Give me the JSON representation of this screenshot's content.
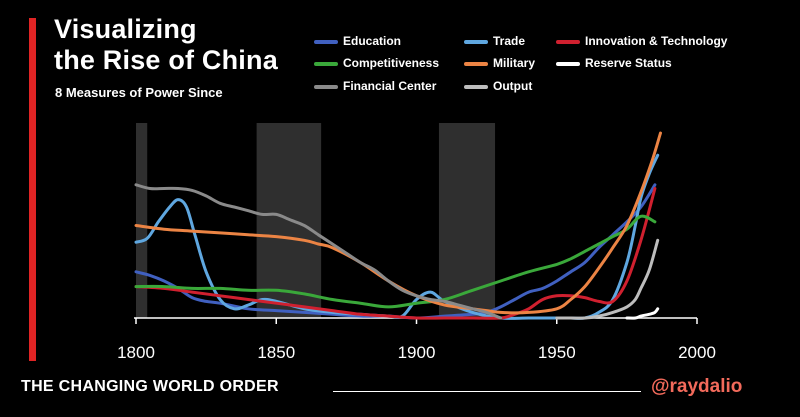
{
  "header": {
    "title_line1": "Visualizing",
    "title_line2": "the Rise of China",
    "subtitle": "8 Measures of Power Since"
  },
  "footer": {
    "left": "THE CHANGING WORLD ORDER",
    "right": "@raydalio"
  },
  "colors": {
    "accent_red": "#e02424",
    "background": "#000000",
    "footer_handle": "#f26a5b",
    "shading": "#2f2f2f"
  },
  "chart_data": {
    "type": "line",
    "title": "Visualizing the Rise of China",
    "subtitle": "8 Measures of Power Since",
    "xlabel": "",
    "ylabel": "",
    "xlim": [
      1800,
      2000
    ],
    "ylim": [
      0,
      1
    ],
    "x_ticks": [
      "1800",
      "1850",
      "1900",
      "1950",
      "2000"
    ],
    "grid": false,
    "legend_position": "top",
    "shaded_periods": [
      [
        1800,
        1804
      ],
      [
        1843,
        1866
      ],
      [
        1908,
        1928
      ]
    ],
    "series": [
      {
        "name": "Education",
        "color": "#4060c0",
        "x": [
          1800,
          1805,
          1810,
          1815,
          1820,
          1825,
          1830,
          1840,
          1850,
          1860,
          1870,
          1880,
          1890,
          1900,
          1910,
          1920,
          1925,
          1930,
          1935,
          1940,
          1945,
          1950,
          1955,
          1960,
          1965,
          1970,
          1975,
          1980,
          1985
        ],
        "y": [
          0.25,
          0.23,
          0.2,
          0.16,
          0.11,
          0.09,
          0.08,
          0.05,
          0.04,
          0.03,
          0.02,
          0.01,
          0.01,
          0.0,
          0.01,
          0.02,
          0.03,
          0.06,
          0.1,
          0.14,
          0.16,
          0.2,
          0.25,
          0.3,
          0.38,
          0.45,
          0.52,
          0.6,
          0.72
        ]
      },
      {
        "name": "Trade",
        "color": "#5fa7e0",
        "x": [
          1800,
          1804,
          1808,
          1812,
          1815,
          1818,
          1821,
          1825,
          1830,
          1835,
          1840,
          1845,
          1850,
          1860,
          1870,
          1880,
          1890,
          1895,
          1900,
          1905,
          1910,
          1920,
          1930,
          1940,
          1950,
          1955,
          1960,
          1965,
          1970,
          1975,
          1978,
          1980,
          1983,
          1986
        ],
        "y": [
          0.41,
          0.43,
          0.52,
          0.6,
          0.64,
          0.6,
          0.45,
          0.25,
          0.1,
          0.05,
          0.07,
          0.1,
          0.09,
          0.05,
          0.03,
          0.02,
          0.01,
          0.01,
          0.1,
          0.14,
          0.09,
          0.03,
          0.0,
          0.0,
          0.0,
          0.0,
          0.0,
          0.03,
          0.1,
          0.3,
          0.5,
          0.65,
          0.78,
          0.88
        ]
      },
      {
        "name": "Innovation & Technology",
        "color": "#d0202f",
        "x": [
          1800,
          1810,
          1820,
          1830,
          1840,
          1850,
          1860,
          1870,
          1880,
          1890,
          1900,
          1910,
          1920,
          1930,
          1935,
          1940,
          1945,
          1950,
          1955,
          1960,
          1965,
          1970,
          1975,
          1980,
          1985
        ],
        "y": [
          0.17,
          0.16,
          0.14,
          0.12,
          0.1,
          0.08,
          0.06,
          0.04,
          0.02,
          0.01,
          0.0,
          0.0,
          0.0,
          0.0,
          0.02,
          0.05,
          0.1,
          0.12,
          0.12,
          0.11,
          0.09,
          0.09,
          0.2,
          0.42,
          0.7
        ]
      },
      {
        "name": "Competitiveness",
        "color": "#3aa83a",
        "x": [
          1800,
          1810,
          1820,
          1830,
          1840,
          1850,
          1860,
          1870,
          1880,
          1890,
          1900,
          1910,
          1920,
          1930,
          1940,
          1950,
          1955,
          1960,
          1965,
          1970,
          1975,
          1980,
          1985
        ],
        "y": [
          0.17,
          0.17,
          0.16,
          0.16,
          0.15,
          0.15,
          0.13,
          0.1,
          0.08,
          0.06,
          0.08,
          0.1,
          0.15,
          0.2,
          0.25,
          0.29,
          0.32,
          0.36,
          0.4,
          0.44,
          0.48,
          0.55,
          0.52
        ]
      },
      {
        "name": "Military",
        "color": "#ec8444",
        "x": [
          1800,
          1810,
          1820,
          1830,
          1840,
          1850,
          1860,
          1865,
          1870,
          1880,
          1890,
          1900,
          1910,
          1920,
          1925,
          1930,
          1940,
          1950,
          1955,
          1960,
          1965,
          1970,
          1975,
          1980,
          1984,
          1987
        ],
        "y": [
          0.5,
          0.48,
          0.47,
          0.46,
          0.45,
          0.44,
          0.42,
          0.4,
          0.38,
          0.3,
          0.2,
          0.12,
          0.07,
          0.05,
          0.04,
          0.03,
          0.03,
          0.05,
          0.1,
          0.17,
          0.27,
          0.38,
          0.5,
          0.68,
          0.85,
          1.0
        ]
      },
      {
        "name": "Reserve Status",
        "color": "#ffffff",
        "x": [
          1975,
          1978,
          1980,
          1983,
          1985,
          1986
        ],
        "y": [
          0.0,
          0.0,
          0.01,
          0.02,
          0.03,
          0.05
        ]
      },
      {
        "name": "Financial Center",
        "color": "#8a8a8a",
        "x": [
          1800,
          1805,
          1810,
          1815,
          1820,
          1825,
          1830,
          1835,
          1840,
          1845,
          1850,
          1855,
          1860,
          1865,
          1870,
          1875,
          1880,
          1885,
          1890,
          1895,
          1900,
          1905,
          1910,
          1915,
          1920,
          1925,
          1930
        ],
        "y": [
          0.72,
          0.7,
          0.7,
          0.7,
          0.69,
          0.66,
          0.62,
          0.6,
          0.58,
          0.56,
          0.56,
          0.53,
          0.5,
          0.45,
          0.4,
          0.35,
          0.3,
          0.26,
          0.2,
          0.15,
          0.12,
          0.1,
          0.09,
          0.07,
          0.05,
          0.03,
          0.0
        ]
      },
      {
        "name": "Output",
        "color": "#bdbdbd",
        "x": [
          1950,
          1955,
          1960,
          1965,
          1970,
          1975,
          1978,
          1980,
          1983,
          1986
        ],
        "y": [
          0.0,
          0.0,
          0.0,
          0.01,
          0.03,
          0.06,
          0.1,
          0.16,
          0.26,
          0.42
        ]
      }
    ]
  }
}
